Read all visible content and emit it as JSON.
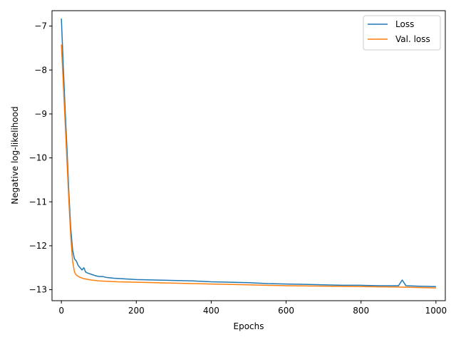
{
  "chart_data": {
    "type": "line",
    "title": "",
    "xlabel": "Epochs",
    "ylabel": "Negative log-likelihood",
    "xlim": [
      -25,
      1025
    ],
    "ylim": [
      -13.25,
      -6.65
    ],
    "xticks": [
      0,
      200,
      400,
      600,
      800,
      1000
    ],
    "yticks": [
      -13,
      -12,
      -11,
      -10,
      -9,
      -8,
      -7
    ],
    "ytick_labels": [
      "−13",
      "−12",
      "−11",
      "−10",
      "−9",
      "−8",
      "−7"
    ],
    "grid": false,
    "legend_position": "top-right",
    "series": [
      {
        "name": "Loss",
        "color": "#1f77b4",
        "x": [
          0,
          5,
          10,
          15,
          20,
          25,
          30,
          35,
          40,
          45,
          50,
          55,
          60,
          65,
          70,
          80,
          90,
          100,
          110,
          120,
          140,
          160,
          180,
          200,
          250,
          300,
          350,
          400,
          450,
          500,
          550,
          600,
          650,
          700,
          750,
          800,
          850,
          900,
          910,
          920,
          950,
          1000
        ],
        "y": [
          -6.83,
          -7.9,
          -8.9,
          -9.8,
          -10.8,
          -11.6,
          -12.1,
          -12.3,
          -12.35,
          -12.45,
          -12.5,
          -12.55,
          -12.5,
          -12.6,
          -12.62,
          -12.65,
          -12.68,
          -12.7,
          -12.7,
          -12.72,
          -12.74,
          -12.75,
          -12.76,
          -12.77,
          -12.78,
          -12.79,
          -12.8,
          -12.82,
          -12.83,
          -12.84,
          -12.86,
          -12.87,
          -12.88,
          -12.89,
          -12.9,
          -12.9,
          -12.91,
          -12.91,
          -12.78,
          -12.91,
          -12.92,
          -12.93
        ]
      },
      {
        "name": "Val. loss",
        "color": "#ff7f0e",
        "x": [
          0,
          5,
          10,
          15,
          20,
          25,
          30,
          35,
          40,
          50,
          60,
          80,
          100,
          150,
          200,
          300,
          400,
          500,
          600,
          700,
          800,
          900,
          1000
        ],
        "y": [
          -7.42,
          -8.3,
          -9.2,
          -10.1,
          -11.0,
          -11.8,
          -12.35,
          -12.6,
          -12.67,
          -12.72,
          -12.75,
          -12.78,
          -12.8,
          -12.82,
          -12.83,
          -12.85,
          -12.87,
          -12.89,
          -12.91,
          -12.92,
          -12.93,
          -12.94,
          -12.96
        ]
      }
    ]
  }
}
